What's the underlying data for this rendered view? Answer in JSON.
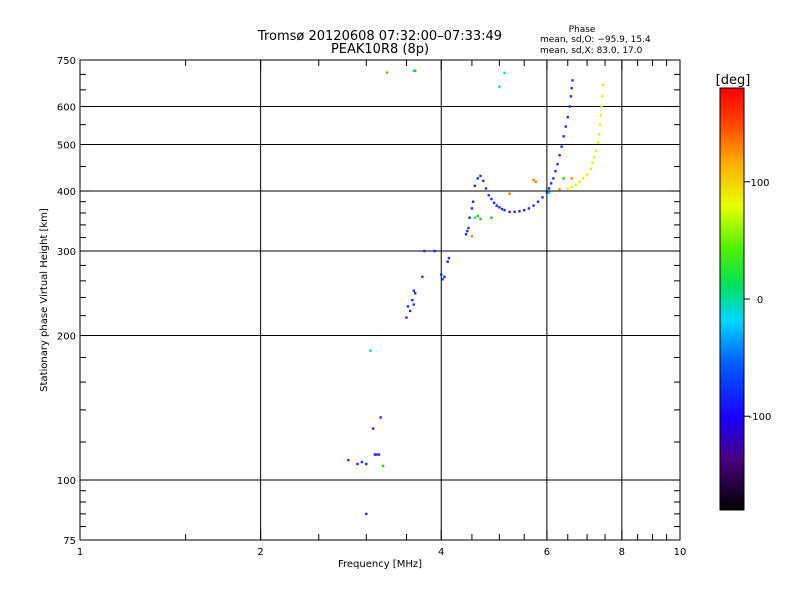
{
  "chart_data": {
    "type": "scatter",
    "title": "Tromsø 20120608 07:32:00–07:33:49",
    "subtitle": "PEAK10R8 (8p)",
    "phase_header": "Phase",
    "phase_o_label": "mean, sd,O: −95.9, 15.4",
    "phase_x_label": "mean, sd,X:  83.0, 17.0",
    "xlabel": "Frequency [MHz]",
    "ylabel": "Stationary phase Virtual Height [km]",
    "x_scale": "log",
    "y_scale": "log",
    "xlim": [
      1,
      10
    ],
    "ylim": [
      75,
      750
    ],
    "x_ticks": [
      1,
      2,
      4,
      6,
      8,
      10
    ],
    "y_ticks": [
      75,
      100,
      200,
      300,
      400,
      500,
      600,
      750
    ],
    "grid": true,
    "colorbar": {
      "title": "[deg]",
      "ticks": [
        -100,
        0,
        100
      ],
      "range": [
        -180,
        180
      ]
    },
    "series": [
      {
        "mode": "O",
        "color": "#1a2cff",
        "points": [
          [
            3.0,
            85
          ],
          [
            2.8,
            110
          ],
          [
            2.9,
            108
          ],
          [
            2.95,
            109
          ],
          [
            3.0,
            108
          ],
          [
            3.1,
            113
          ],
          [
            3.12,
            113
          ],
          [
            3.15,
            113
          ],
          [
            3.08,
            128
          ],
          [
            3.17,
            135
          ],
          [
            3.5,
            218
          ],
          [
            3.55,
            225
          ],
          [
            3.52,
            230
          ],
          [
            3.58,
            237
          ],
          [
            3.6,
            232
          ],
          [
            3.62,
            245
          ],
          [
            3.6,
            248
          ],
          [
            3.75,
            300
          ],
          [
            3.72,
            265
          ],
          [
            3.9,
            300
          ],
          [
            4.0,
            268
          ],
          [
            4.02,
            262
          ],
          [
            4.05,
            265
          ],
          [
            4.1,
            285
          ],
          [
            4.12,
            290
          ],
          [
            4.4,
            325
          ],
          [
            4.42,
            330
          ],
          [
            4.44,
            335
          ],
          [
            4.46,
            352
          ],
          [
            4.5,
            368
          ],
          [
            4.52,
            380
          ],
          [
            4.55,
            410
          ],
          [
            4.6,
            425
          ],
          [
            4.65,
            430
          ],
          [
            4.7,
            420
          ],
          [
            4.75,
            405
          ],
          [
            4.8,
            392
          ],
          [
            4.85,
            385
          ],
          [
            4.9,
            378
          ],
          [
            4.95,
            373
          ],
          [
            5.0,
            370
          ],
          [
            5.05,
            367
          ],
          [
            5.1,
            365
          ],
          [
            5.2,
            362
          ],
          [
            5.3,
            362
          ],
          [
            5.4,
            363
          ],
          [
            5.5,
            365
          ],
          [
            5.6,
            368
          ],
          [
            5.7,
            373
          ],
          [
            5.8,
            380
          ],
          [
            5.9,
            388
          ],
          [
            6.0,
            397
          ],
          [
            6.05,
            405
          ],
          [
            6.1,
            415
          ],
          [
            6.15,
            425
          ],
          [
            6.2,
            440
          ],
          [
            6.25,
            455
          ],
          [
            6.3,
            475
          ],
          [
            6.35,
            495
          ],
          [
            6.4,
            520
          ],
          [
            6.45,
            545
          ],
          [
            6.5,
            570
          ],
          [
            6.55,
            600
          ],
          [
            6.58,
            630
          ],
          [
            6.6,
            655
          ],
          [
            6.62,
            680
          ]
        ]
      },
      {
        "mode": "X",
        "color": "#e8f000",
        "points": [
          [
            6.5,
            405
          ],
          [
            6.6,
            408
          ],
          [
            6.7,
            412
          ],
          [
            6.8,
            418
          ],
          [
            6.9,
            425
          ],
          [
            7.0,
            433
          ],
          [
            7.1,
            445
          ],
          [
            7.15,
            458
          ],
          [
            7.2,
            470
          ],
          [
            7.25,
            485
          ],
          [
            7.3,
            505
          ],
          [
            7.33,
            525
          ],
          [
            7.36,
            550
          ],
          [
            7.38,
            575
          ],
          [
            7.4,
            600
          ],
          [
            7.42,
            630
          ],
          [
            7.45,
            665
          ]
        ]
      },
      {
        "mode": "scattered",
        "color": "#00d4e0",
        "points": [
          [
            3.05,
            186
          ],
          [
            3.6,
            712
          ],
          [
            5.0,
            660
          ],
          [
            5.1,
            705
          ],
          [
            6.05,
            397
          ],
          [
            4.55,
            352
          ]
        ]
      },
      {
        "mode": "scattered",
        "color": "#ff7a00",
        "points": [
          [
            3.25,
            706
          ],
          [
            4.5,
            322
          ],
          [
            5.2,
            395
          ],
          [
            5.7,
            422
          ],
          [
            6.3,
            403
          ],
          [
            6.6,
            425
          ],
          [
            5.75,
            418
          ]
        ]
      },
      {
        "mode": "scattered",
        "color": "#22d000",
        "points": [
          [
            3.2,
            107
          ],
          [
            3.62,
            712
          ],
          [
            4.6,
            355
          ],
          [
            4.65,
            350
          ],
          [
            4.85,
            352
          ],
          [
            6.4,
            425
          ]
        ]
      }
    ]
  }
}
